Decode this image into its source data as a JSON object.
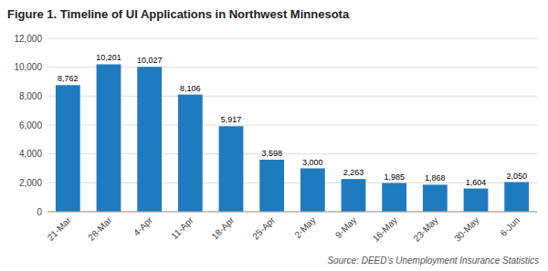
{
  "chart_data": {
    "type": "bar",
    "title": "Figure 1. Timeline of UI Applications in Northwest Minnesota",
    "categories": [
      "21-Mar",
      "28-Mar",
      "4-Apr",
      "11-Apr",
      "18-Apr",
      "25-Apr",
      "2-May",
      "9-May",
      "16-May",
      "23-May",
      "30-May",
      "6-Jun"
    ],
    "values": [
      8762,
      10201,
      10027,
      8106,
      5917,
      3598,
      3000,
      2263,
      1985,
      1868,
      1604,
      2050
    ],
    "value_labels": [
      "8,762",
      "10,201",
      "10,027",
      "8,106",
      "5,917",
      "3,598",
      "3,000",
      "2,263",
      "1,985",
      "1,868",
      "1,604",
      "2,050"
    ],
    "data_labels": true,
    "color": "#1F7BBF",
    "ylim": [
      0,
      12000
    ],
    "yticks": [
      0,
      {
        "value": 2000,
        "label": "2,000"
      },
      {
        "value": 4000,
        "label": "4,000"
      },
      {
        "value": 6000,
        "label": "6,000"
      },
      {
        "value": 8000,
        "label": "8,000"
      },
      {
        "value": 10000,
        "label": "10,000"
      },
      {
        "value": 12000,
        "label": "12,000"
      }
    ],
    "grid": true,
    "annotations": [
      "Source:  DEED’s Unemployment Insurance Statistics"
    ]
  }
}
